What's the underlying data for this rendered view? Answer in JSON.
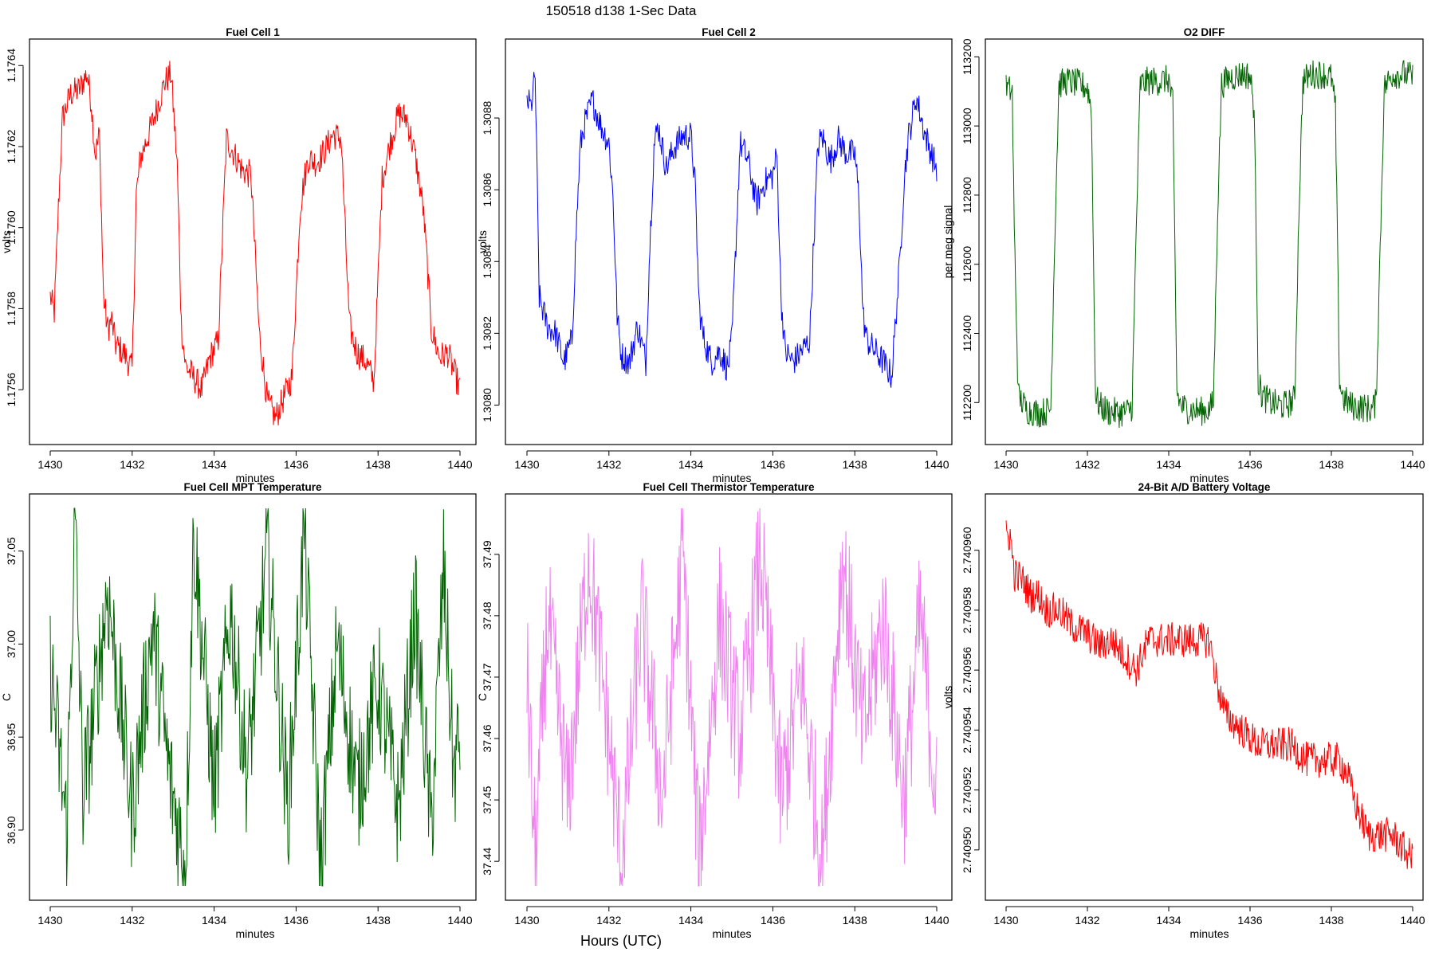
{
  "figure": {
    "suptitle": "150518   d138   1-Sec Data",
    "bottom_label": "Hours (UTC)"
  },
  "chart_data": [
    {
      "type": "line",
      "title": "Fuel Cell 1",
      "xlabel": "minutes",
      "ylabel": "volts",
      "color": "#ff0000",
      "xlim": [
        1430,
        1440
      ],
      "ylim": [
        1.1755,
        1.17643
      ],
      "xticks": [
        1430,
        1432,
        1434,
        1436,
        1438,
        1440
      ],
      "yticks": [
        1.1756,
        1.1758,
        1.176,
        1.1762,
        1.1764
      ],
      "ytick_labels": [
        "1.1756",
        "1.1758",
        "1.1760",
        "1.1762",
        "1.1764"
      ],
      "x": [
        1430.0,
        1430.1,
        1430.2,
        1430.3,
        1430.5,
        1430.7,
        1430.9,
        1431.0,
        1431.1,
        1431.2,
        1431.3,
        1431.4,
        1431.5,
        1431.6,
        1431.8,
        1432.0,
        1432.1,
        1432.2,
        1432.3,
        1432.5,
        1432.8,
        1432.95,
        1433.1,
        1433.2,
        1433.3,
        1433.5,
        1433.7,
        1433.9,
        1434.1,
        1434.3,
        1434.5,
        1434.7,
        1434.9,
        1435.1,
        1435.3,
        1435.5,
        1435.7,
        1435.9,
        1436.1,
        1436.2,
        1436.3,
        1436.5,
        1436.7,
        1436.9,
        1437.1,
        1437.3,
        1437.4,
        1437.5,
        1437.7,
        1437.9,
        1438.1,
        1438.3,
        1438.5,
        1438.7,
        1438.9,
        1439.1,
        1439.2,
        1439.3,
        1439.5,
        1439.7,
        1439.9,
        1440.0
      ],
      "values": [
        1.17583,
        1.17579,
        1.17605,
        1.17627,
        1.17633,
        1.17634,
        1.17638,
        1.17631,
        1.17618,
        1.17623,
        1.17583,
        1.17575,
        1.17577,
        1.17571,
        1.17569,
        1.17565,
        1.17608,
        1.17617,
        1.1762,
        1.17626,
        1.17636,
        1.17638,
        1.17615,
        1.17576,
        1.17566,
        1.17563,
        1.1756,
        1.17568,
        1.17572,
        1.17622,
        1.17618,
        1.17614,
        1.17613,
        1.17574,
        1.17557,
        1.17553,
        1.17558,
        1.17563,
        1.17605,
        1.17612,
        1.17617,
        1.17616,
        1.17619,
        1.17623,
        1.17622,
        1.17576,
        1.17572,
        1.17569,
        1.17567,
        1.17562,
        1.17612,
        1.17621,
        1.17628,
        1.17627,
        1.17618,
        1.17605,
        1.17591,
        1.17575,
        1.17568,
        1.17569,
        1.17563,
        1.1756
      ]
    },
    {
      "type": "line",
      "title": "Fuel Cell 2",
      "xlabel": "minutes",
      "ylabel": "volts",
      "color": "#0000ff",
      "xlim": [
        1430,
        1440
      ],
      "ylim": [
        1.30793,
        1.30898
      ],
      "xticks": [
        1430,
        1432,
        1434,
        1436,
        1438,
        1440
      ],
      "yticks": [
        1.308,
        1.3082,
        1.3084,
        1.3086,
        1.3088
      ],
      "ytick_labels": [
        "1.3080",
        "1.3082",
        "1.3084",
        "1.3086",
        "1.3088"
      ],
      "x": [
        1430.0,
        1430.1,
        1430.2,
        1430.3,
        1430.5,
        1430.7,
        1430.9,
        1431.1,
        1431.2,
        1431.3,
        1431.4,
        1431.6,
        1431.8,
        1432.0,
        1432.1,
        1432.2,
        1432.3,
        1432.5,
        1432.7,
        1432.9,
        1433.0,
        1433.1,
        1433.2,
        1433.4,
        1433.6,
        1433.8,
        1434.0,
        1434.1,
        1434.2,
        1434.3,
        1434.5,
        1434.7,
        1434.9,
        1435.0,
        1435.1,
        1435.2,
        1435.4,
        1435.6,
        1435.8,
        1436.0,
        1436.1,
        1436.2,
        1436.3,
        1436.5,
        1436.7,
        1436.9,
        1437.0,
        1437.1,
        1437.2,
        1437.4,
        1437.6,
        1437.8,
        1438.0,
        1438.1,
        1438.2,
        1438.3,
        1438.5,
        1438.7,
        1438.9,
        1439.1,
        1439.2,
        1439.3,
        1439.5,
        1439.7,
        1439.9,
        1440.0
      ],
      "values": [
        1.30885,
        1.30883,
        1.30892,
        1.3083,
        1.30822,
        1.3082,
        1.30812,
        1.30818,
        1.30848,
        1.30872,
        1.30878,
        1.30885,
        1.30878,
        1.30873,
        1.30858,
        1.30825,
        1.30814,
        1.30812,
        1.30822,
        1.30812,
        1.30845,
        1.30872,
        1.30878,
        1.30866,
        1.30872,
        1.30875,
        1.30875,
        1.30862,
        1.30828,
        1.30819,
        1.30812,
        1.30815,
        1.3081,
        1.30818,
        1.30845,
        1.30873,
        1.30868,
        1.30856,
        1.30862,
        1.30864,
        1.3087,
        1.3083,
        1.30815,
        1.30812,
        1.30815,
        1.30818,
        1.30846,
        1.30872,
        1.30875,
        1.30868,
        1.30874,
        1.3087,
        1.3087,
        1.30858,
        1.30825,
        1.30818,
        1.30815,
        1.30812,
        1.30808,
        1.3084,
        1.30862,
        1.30874,
        1.30886,
        1.30876,
        1.30869,
        1.30866
      ]
    },
    {
      "type": "line",
      "title": "O2 DIFF",
      "xlabel": "minutes",
      "ylabel": "per meg signal",
      "color": "#006400",
      "xlim": [
        1430,
        1440
      ],
      "ylim": [
        112120,
        113210
      ],
      "xticks": [
        1430,
        1432,
        1434,
        1436,
        1438,
        1440
      ],
      "yticks": [
        112200,
        112400,
        112600,
        112800,
        113000,
        113200
      ],
      "ytick_labels": [
        "112200",
        "112400",
        "112600",
        "112800",
        "113000",
        "113200"
      ],
      "x": [
        1430.0,
        1430.15,
        1430.2,
        1430.3,
        1430.5,
        1430.8,
        1431.0,
        1431.1,
        1431.2,
        1431.3,
        1431.5,
        1431.8,
        1432.0,
        1432.1,
        1432.15,
        1432.2,
        1432.3,
        1432.5,
        1432.8,
        1433.0,
        1433.1,
        1433.2,
        1433.3,
        1433.5,
        1433.8,
        1434.0,
        1434.1,
        1434.15,
        1434.2,
        1434.3,
        1434.5,
        1434.8,
        1435.0,
        1435.1,
        1435.2,
        1435.3,
        1435.5,
        1435.8,
        1436.0,
        1436.1,
        1436.15,
        1436.2,
        1436.3,
        1436.5,
        1436.8,
        1437.0,
        1437.1,
        1437.2,
        1437.3,
        1437.5,
        1437.8,
        1438.0,
        1438.1,
        1438.15,
        1438.2,
        1438.3,
        1438.5,
        1438.8,
        1439.0,
        1439.1,
        1439.2,
        1439.3,
        1439.5,
        1439.8,
        1440.0
      ],
      "values": [
        113110,
        113100,
        112700,
        112220,
        112180,
        112170,
        112175,
        112185,
        112700,
        113120,
        113130,
        113120,
        113110,
        113050,
        112600,
        112220,
        112190,
        112175,
        112170,
        112175,
        112190,
        112700,
        113120,
        113130,
        113130,
        113135,
        113060,
        112650,
        112230,
        112190,
        112180,
        112175,
        112180,
        112200,
        112750,
        113120,
        113140,
        113150,
        113145,
        113050,
        112700,
        112260,
        112220,
        112200,
        112190,
        112200,
        112210,
        112750,
        113130,
        113150,
        113150,
        113140,
        113050,
        112650,
        112260,
        112210,
        112190,
        112185,
        112180,
        112200,
        112650,
        113110,
        113150,
        113150,
        113140
      ]
    },
    {
      "type": "line",
      "title": "Fuel Cell MPT Temperature",
      "xlabel": "minutes",
      "ylabel": "C",
      "color": "#006400",
      "xlim": [
        1430,
        1440
      ],
      "ylim": [
        36.87,
        37.073
      ],
      "xticks": [
        1430,
        1432,
        1434,
        1436,
        1438,
        1440
      ],
      "yticks": [
        36.9,
        36.95,
        37.0,
        37.05
      ],
      "ytick_labels": [
        "36.90",
        "36.95",
        "37.00",
        "37.05"
      ],
      "x": [
        1430.0,
        1430.4,
        1430.6,
        1430.8,
        1431.0,
        1431.4,
        1432.0,
        1432.5,
        1432.9,
        1433.3,
        1433.5,
        1434.0,
        1434.4,
        1434.8,
        1435.3,
        1435.8,
        1436.2,
        1436.6,
        1437.0,
        1437.5,
        1438.0,
        1438.5,
        1438.9,
        1439.3,
        1439.6,
        1439.85,
        1440.0
      ],
      "values": [
        36.99,
        36.9,
        37.07,
        36.92,
        36.95,
        37.03,
        36.91,
        37.01,
        36.93,
        36.88,
        37.06,
        36.92,
        37.02,
        36.93,
        37.05,
        36.91,
        37.06,
        36.88,
        37.0,
        36.92,
        36.98,
        36.91,
        37.02,
        36.9,
        37.04,
        36.93,
        36.95
      ],
      "noise": 0.035
    },
    {
      "type": "line",
      "title": "Fuel Cell Thermistor Temperature",
      "xlabel": "minutes",
      "ylabel": "C",
      "color": "#ee82ee",
      "xlim": [
        1430,
        1440
      ],
      "ylim": [
        37.436,
        37.4975
      ],
      "xticks": [
        1430,
        1432,
        1434,
        1436,
        1438,
        1440
      ],
      "yticks": [
        37.44,
        37.45,
        37.46,
        37.47,
        37.48,
        37.49
      ],
      "ytick_labels": [
        "37.44",
        "37.45",
        "37.46",
        "37.47",
        "37.48",
        "37.49"
      ],
      "x": [
        1430.0,
        1430.2,
        1430.5,
        1431.0,
        1431.5,
        1432.0,
        1432.3,
        1432.8,
        1433.3,
        1433.8,
        1434.2,
        1434.7,
        1435.2,
        1435.7,
        1436.2,
        1436.7,
        1437.2,
        1437.7,
        1438.2,
        1438.7,
        1439.2,
        1439.6,
        1440.0
      ],
      "values": [
        37.47,
        37.44,
        37.48,
        37.45,
        37.49,
        37.46,
        37.44,
        37.48,
        37.45,
        37.49,
        37.44,
        37.48,
        37.46,
        37.49,
        37.45,
        37.47,
        37.44,
        37.49,
        37.46,
        37.48,
        37.45,
        37.48,
        37.45
      ],
      "noise": 0.012
    },
    {
      "type": "line",
      "title": "24-Bit A/D Battery Voltage",
      "xlabel": "minutes",
      "ylabel": "volts",
      "color": "#ff0000",
      "xlim": [
        1430,
        1440
      ],
      "ylim": [
        2.7409488,
        2.7409614
      ],
      "xticks": [
        1430,
        1432,
        1434,
        1436,
        1438,
        1440
      ],
      "yticks": [
        2.74095,
        2.740952,
        2.740954,
        2.740956,
        2.740958,
        2.74096
      ],
      "ytick_labels": [
        "2.740950",
        "2.740952",
        "2.740954",
        "2.740956",
        "2.740958",
        "2.740960"
      ],
      "x": [
        1430.0,
        1430.1,
        1430.2,
        1430.4,
        1430.6,
        1430.8,
        1431.0,
        1431.3,
        1431.6,
        1432.0,
        1432.3,
        1432.6,
        1432.9,
        1433.2,
        1433.5,
        1433.8,
        1434.2,
        1434.6,
        1435.0,
        1435.2,
        1435.4,
        1435.8,
        1436.2,
        1436.6,
        1437.0,
        1437.4,
        1437.8,
        1438.2,
        1438.4,
        1438.6,
        1438.9,
        1439.2,
        1439.5,
        1439.8,
        1440.0
      ],
      "values": [
        2.7409605,
        2.7409605,
        2.7409592,
        2.740959,
        2.7409585,
        2.7409585,
        2.740958,
        2.740958,
        2.7409575,
        2.7409572,
        2.7409568,
        2.740957,
        2.7409565,
        2.740956,
        2.740957,
        2.740957,
        2.740957,
        2.740957,
        2.740957,
        2.7409555,
        2.7409545,
        2.740954,
        2.7409535,
        2.7409535,
        2.7409535,
        2.740953,
        2.740953,
        2.740953,
        2.7409525,
        2.7409515,
        2.7409505,
        2.7409505,
        2.7409505,
        2.74095,
        2.7409497
      ],
      "noise": 6e-07
    }
  ]
}
